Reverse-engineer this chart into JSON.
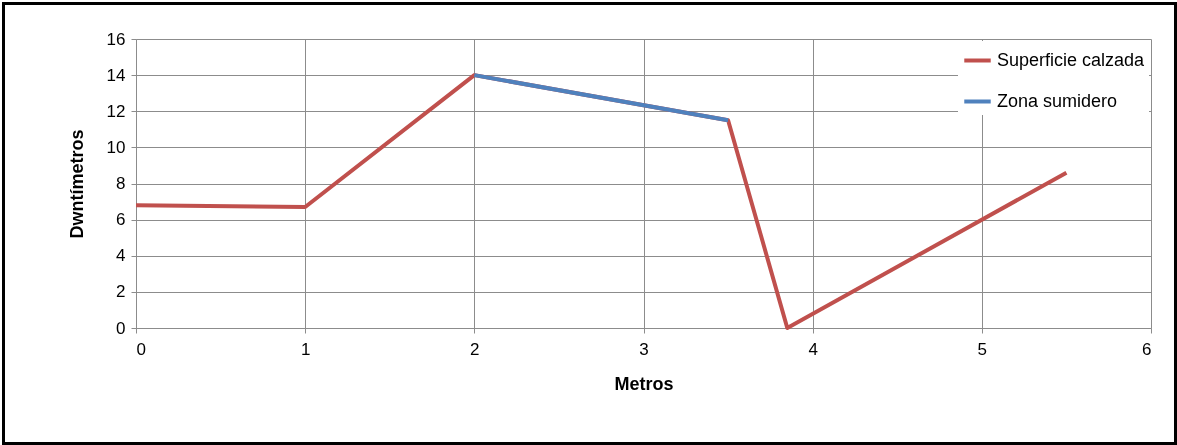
{
  "chart_data": {
    "type": "line",
    "xlabel": "Metros",
    "ylabel": "Dwntímetros",
    "series": [
      {
        "name": "Superficie calzada",
        "color": "#c0504d",
        "x": [
          0,
          1,
          2,
          3.5,
          3.85,
          5.5
        ],
        "values": [
          6.8,
          6.7,
          14,
          11.5,
          0,
          8.6
        ]
      },
      {
        "name": "Zona sumidero",
        "color": "#4f81bd",
        "x": [
          2,
          3.5
        ],
        "values": [
          14,
          11.5
        ]
      }
    ],
    "xlim": [
      0,
      6
    ],
    "xticks": [
      0,
      1,
      2,
      3,
      4,
      5,
      6
    ],
    "ylim": [
      0,
      16
    ],
    "yticks": [
      0,
      2,
      4,
      6,
      8,
      10,
      12,
      14,
      16
    ],
    "grid": true,
    "legend": "top right",
    "marker": "none",
    "line_style": "solid"
  }
}
